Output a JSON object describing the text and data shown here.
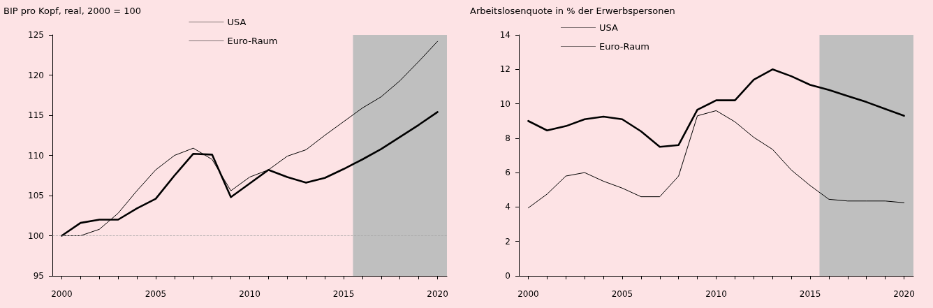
{
  "chart_data": [
    {
      "type": "line",
      "title": "BIP pro Kopf, real, 2000 = 100",
      "x": [
        2000,
        2001,
        2002,
        2003,
        2004,
        2005,
        2006,
        2007,
        2008,
        2009,
        2010,
        2011,
        2012,
        2013,
        2014,
        2015,
        2016,
        2017,
        2018,
        2019,
        2020
      ],
      "series": [
        {
          "name": "USA",
          "color": "#000000",
          "values": [
            100,
            100,
            100.8,
            102.8,
            105.6,
            108.2,
            110.0,
            110.9,
            109.5,
            105.6,
            107.3,
            108.2,
            109.9,
            110.7,
            112.5,
            114.2,
            115.9,
            117.3,
            119.3,
            121.7,
            124.2
          ]
        },
        {
          "name": "Euro-Raum",
          "color": "#000000",
          "values": [
            100,
            101.6,
            102.0,
            102.0,
            103.4,
            104.6,
            107.5,
            110.2,
            110.1,
            104.8,
            106.5,
            108.2,
            107.3,
            106.6,
            107.2,
            108.3,
            109.5,
            110.8,
            112.3,
            113.8,
            115.4
          ]
        }
      ],
      "xlim": [
        1999.5,
        2020.5
      ],
      "xticks": [
        2000,
        {
          "value": 2001,
          "label": null
        },
        {
          "value": 2002,
          "label": null
        },
        {
          "value": 2003,
          "label": null
        },
        {
          "value": 2004,
          "label": null
        },
        2005,
        {
          "value": 2006,
          "label": null
        },
        {
          "value": 2007,
          "label": null
        },
        {
          "value": 2008,
          "label": null
        },
        {
          "value": 2009,
          "label": null
        },
        2010,
        {
          "value": 2011,
          "label": null
        },
        {
          "value": 2012,
          "label": null
        },
        {
          "value": 2013,
          "label": null
        },
        {
          "value": 2014,
          "label": null
        },
        2015,
        {
          "value": 2016,
          "label": null
        },
        {
          "value": 2017,
          "label": null
        },
        {
          "value": 2018,
          "label": null
        },
        {
          "value": 2019,
          "label": null
        },
        2020
      ],
      "ylim": [
        95,
        125
      ],
      "yticks": [
        95,
        100,
        105,
        110,
        115,
        120,
        125
      ],
      "ref_lines": [
        {
          "axis": "y",
          "value": 100,
          "color": "#a6a6a6",
          "line_style": "dashed"
        }
      ],
      "bands": [
        {
          "axis": "x",
          "from": 2015.5,
          "to": 2020.5,
          "color": "#bfbfbf"
        }
      ],
      "grid": false,
      "legend": "top",
      "marker": "none",
      "line_style": "solid"
    },
    {
      "type": "line",
      "title": "Arbeitslosenquote in % der Erwerbspersonen",
      "x": [
        2000,
        2001,
        2002,
        2003,
        2004,
        2005,
        2006,
        2007,
        2008,
        2009,
        2010,
        2011,
        2012,
        2013,
        2014,
        2015,
        2016,
        2017,
        2018,
        2019,
        2020
      ],
      "series": [
        {
          "name": "USA",
          "color": "#000000",
          "values": [
            3.95,
            4.75,
            5.8,
            6.0,
            5.5,
            5.1,
            4.6,
            4.6,
            5.8,
            9.3,
            9.6,
            8.95,
            8.05,
            7.35,
            6.15,
            5.25,
            4.45,
            4.35,
            4.35,
            4.35,
            4.25
          ]
        },
        {
          "name": "Euro-Raum",
          "color": "#000000",
          "values": [
            9.0,
            8.45,
            8.7,
            9.1,
            9.25,
            9.1,
            8.4,
            7.5,
            7.6,
            9.65,
            10.2,
            10.2,
            11.4,
            12.0,
            11.6,
            11.1,
            10.8,
            10.45,
            10.1,
            9.7,
            9.3
          ]
        }
      ],
      "xlim": [
        1999.5,
        2020.5
      ],
      "xticks": [
        2000,
        {
          "value": 2001,
          "label": null
        },
        {
          "value": 2002,
          "label": null
        },
        {
          "value": 2003,
          "label": null
        },
        {
          "value": 2004,
          "label": null
        },
        2005,
        {
          "value": 2006,
          "label": null
        },
        {
          "value": 2007,
          "label": null
        },
        {
          "value": 2008,
          "label": null
        },
        {
          "value": 2009,
          "label": null
        },
        2010,
        {
          "value": 2011,
          "label": null
        },
        {
          "value": 2012,
          "label": null
        },
        {
          "value": 2013,
          "label": null
        },
        {
          "value": 2014,
          "label": null
        },
        2015,
        {
          "value": 2016,
          "label": null
        },
        {
          "value": 2017,
          "label": null
        },
        {
          "value": 2018,
          "label": null
        },
        {
          "value": 2019,
          "label": null
        },
        2020
      ],
      "ylim": [
        0,
        14
      ],
      "yticks": [
        0,
        2,
        4,
        6,
        8,
        10,
        12,
        14
      ],
      "bands": [
        {
          "axis": "x",
          "from": 2015.5,
          "to": 2020.5,
          "color": "#bfbfbf"
        }
      ],
      "grid": false,
      "legend": "top left",
      "marker": "none",
      "line_style": "solid"
    }
  ]
}
